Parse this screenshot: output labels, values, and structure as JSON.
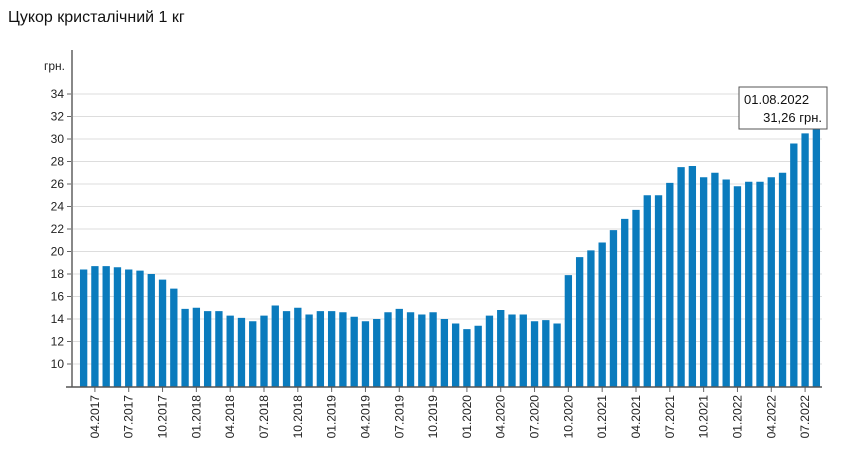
{
  "chart_data": {
    "type": "bar",
    "title": "Цукор кристалічний 1 кг",
    "ylabel": "грн.",
    "ylim": [
      8,
      35
    ],
    "yticks": [
      10,
      12,
      14,
      16,
      18,
      20,
      22,
      24,
      26,
      28,
      30,
      32,
      34
    ],
    "grid": true,
    "bar_color": "#0a7bbd",
    "start_month": "03.2017",
    "xtick_labels": [
      "04.2017",
      "07.2017",
      "10.2017",
      "01.2018",
      "04.2018",
      "07.2018",
      "10.2018",
      "01.2019",
      "04.2019",
      "07.2019",
      "10.2019",
      "01.2020",
      "04.2020",
      "07.2020",
      "10.2020",
      "01.2021",
      "04.2021",
      "07.2021",
      "10.2021",
      "01.2022",
      "04.2022",
      "07.2022"
    ],
    "values": [
      18.4,
      18.7,
      18.7,
      18.6,
      18.4,
      18.3,
      18.0,
      17.5,
      16.7,
      14.9,
      15.0,
      14.7,
      14.7,
      14.3,
      14.1,
      13.8,
      14.3,
      15.2,
      14.7,
      15.0,
      14.4,
      14.7,
      14.7,
      14.6,
      14.2,
      13.8,
      14.0,
      14.6,
      14.9,
      14.6,
      14.4,
      14.6,
      14.0,
      13.6,
      13.1,
      13.4,
      14.3,
      14.8,
      14.4,
      14.4,
      13.8,
      13.9,
      13.6,
      17.9,
      19.5,
      20.1,
      20.8,
      21.9,
      22.9,
      23.7,
      25.0,
      25.0,
      26.1,
      27.5,
      27.6,
      26.6,
      27.0,
      26.4,
      25.8,
      26.2,
      26.2,
      26.6,
      27.0,
      29.6,
      30.5,
      31.26
    ],
    "tooltip": {
      "date": "01.08.2022",
      "value": "31,26 грн."
    }
  }
}
